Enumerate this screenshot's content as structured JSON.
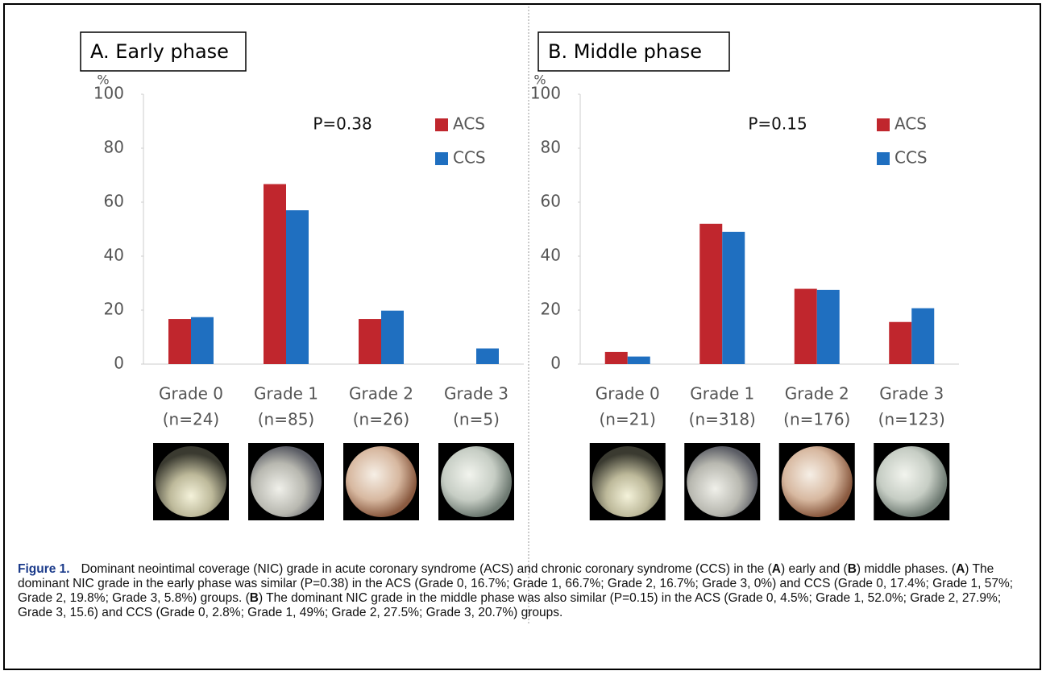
{
  "chart_data": [
    {
      "type": "bar",
      "title": "A. Early phase",
      "y_unit": "%",
      "annotation": "P=0.38",
      "categories": [
        "Grade 0",
        "Grade 1",
        "Grade 2",
        "Grade 3"
      ],
      "category_counts": [
        "(n=24)",
        "(n=85)",
        "(n=26)",
        "(n=5)"
      ],
      "series": [
        {
          "name": "ACS",
          "color": "#c0262d",
          "values": [
            16.7,
            66.7,
            16.7,
            0
          ]
        },
        {
          "name": "CCS",
          "color": "#1f6fc0",
          "values": [
            17.4,
            57,
            19.8,
            5.8
          ]
        }
      ],
      "ylim": [
        0,
        100
      ],
      "yticks": [
        0,
        20,
        40,
        60,
        80,
        100
      ],
      "grid": false,
      "legend": "top-right"
    },
    {
      "type": "bar",
      "title": "B. Middle phase",
      "y_unit": "%",
      "annotation": "P=0.15",
      "categories": [
        "Grade 0",
        "Grade 1",
        "Grade 2",
        "Grade 3"
      ],
      "category_counts": [
        "(n=21)",
        "(n=318)",
        "(n=176)",
        "(n=123)"
      ],
      "series": [
        {
          "name": "ACS",
          "color": "#c0262d",
          "values": [
            4.5,
            52.0,
            27.9,
            15.6
          ]
        },
        {
          "name": "CCS",
          "color": "#1f6fc0",
          "values": [
            2.8,
            49,
            27.5,
            20.7
          ]
        }
      ],
      "ylim": [
        0,
        100
      ],
      "yticks": [
        0,
        20,
        40,
        60,
        80,
        100
      ],
      "grid": false,
      "legend": "top-right"
    }
  ],
  "caption": {
    "label": "Figure 1.",
    "segments": [
      "Dominant neointimal coverage (NIC) grade in acute coronary syndrome (ACS) and chronic coronary syndrome (CCS) in the (",
      "A",
      ") early and (",
      "B",
      ") middle phases. (",
      "A",
      ") The dominant NIC grade in the early phase was similar (P=0.38) in the ACS (Grade 0, 16.7%; Grade 1, 66.7%; Grade 2, 16.7%; Grade 3, 0%) and CCS (Grade 0, 17.4%; Grade 1, 57%; Grade 2, 19.8%; Grade 3, 5.8%) groups. (",
      "B",
      ") The dominant NIC grade in the middle phase was also similar (P=0.15) in the ACS (Grade 0, 4.5%; Grade 1, 52.0%; Grade 2, 27.9%; Grade 3, 15.6) and CCS (Grade 0, 2.8%; Grade 1, 49%; Grade 2, 27.5%; Grade 3, 20.7%) groups."
    ]
  }
}
